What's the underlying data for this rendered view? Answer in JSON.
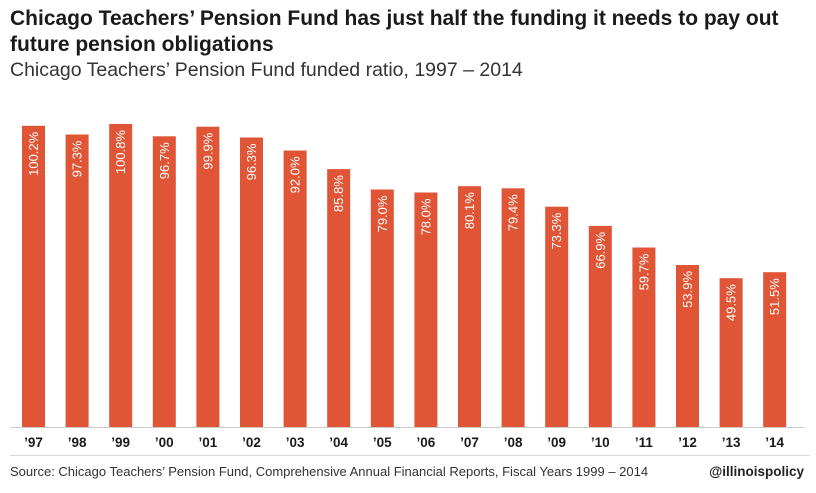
{
  "header": {
    "title": "Chicago Teachers’ Pension Fund has just half the funding it needs to pay out future pension obligations",
    "subtitle": "Chicago Teachers’ Pension Fund funded ratio, 1997 – 2014"
  },
  "footer": {
    "source": "Source: Chicago Teachers’ Pension Fund, Comprehensive Annual Financial Reports, Fiscal Years 1999 – 2014",
    "handle": "@illinoispolicy"
  },
  "colors": {
    "bar": "#e05535",
    "bar_label": "#ffffff",
    "axis": "#cccccc",
    "tick_text": "#1a1a1a"
  },
  "chart_data": {
    "type": "bar",
    "title": "Chicago Teachers’ Pension Fund has just half the funding it needs to pay out future pension obligations",
    "subtitle": "Chicago Teachers’ Pension Fund funded ratio, 1997 – 2014",
    "categories": [
      "’97",
      "’98",
      "’99",
      "’00",
      "’01",
      "’02",
      "’03",
      "’04",
      "’05",
      "’06",
      "’07",
      "’08",
      "’09",
      "’10",
      "’11",
      "’12",
      "’13",
      "’14"
    ],
    "values": [
      100.2,
      97.3,
      100.8,
      96.7,
      99.9,
      96.3,
      92.0,
      85.8,
      79.0,
      78.0,
      80.1,
      79.4,
      73.3,
      66.9,
      59.7,
      53.9,
      49.5,
      51.5
    ],
    "value_labels": [
      "100.2%",
      "97.3%",
      "100.8%",
      "96.7%",
      "99.9%",
      "96.3%",
      "92.0%",
      "85.8%",
      "79.0%",
      "78.0%",
      "80.1%",
      "79.4%",
      "73.3%",
      "66.9%",
      "59.7%",
      "53.9%",
      "49.5%",
      "51.5%"
    ],
    "xlabel": "",
    "ylabel": "",
    "ylim": [
      0,
      100.8
    ],
    "grid": false,
    "legend": "none"
  }
}
